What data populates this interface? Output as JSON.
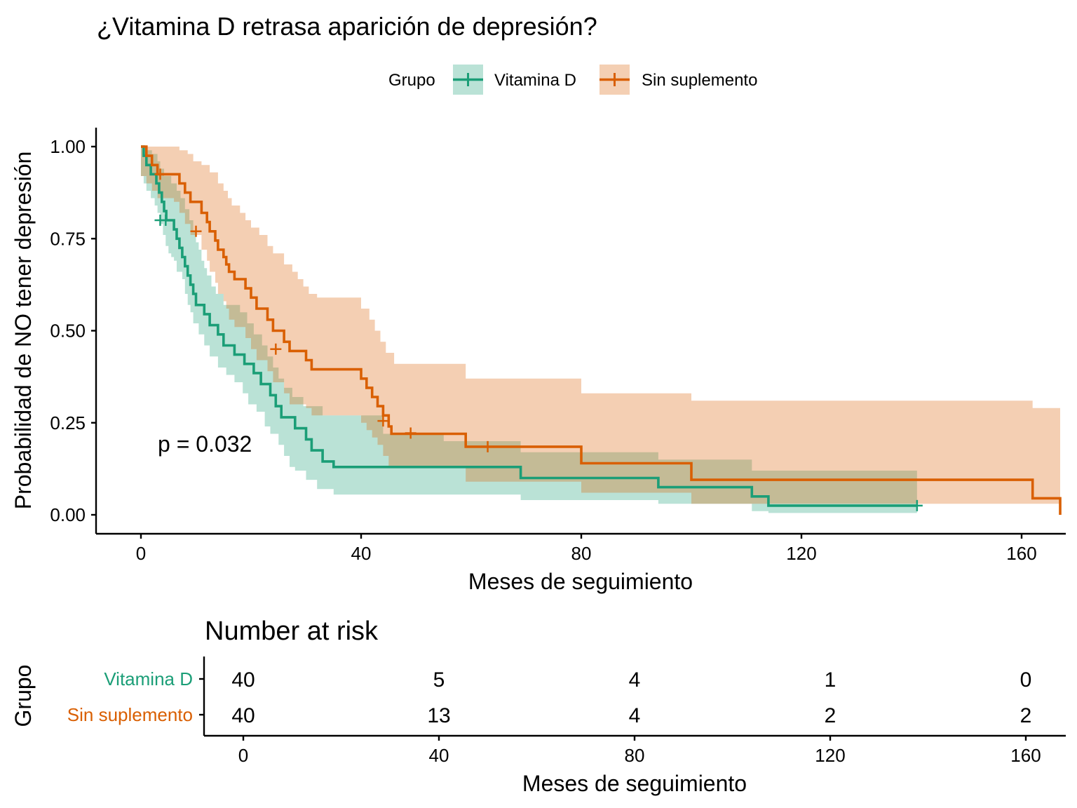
{
  "title": "¿Vitamina D retrasa aparición de depresión?",
  "legend": {
    "title": "Grupo",
    "items": [
      {
        "label": "Vitamina D",
        "color": "#1b9e77"
      },
      {
        "label": "Sin suplemento",
        "color": "#d95f02"
      }
    ]
  },
  "pvalue_text": "p = 0.032",
  "chart_data": [
    {
      "type": "line",
      "subtype": "kaplan-meier",
      "title": "¿Vitamina D retrasa aparición de depresión?",
      "xlabel": "Meses de seguimiento",
      "ylabel": "Probabilidad de NO tener depresión",
      "xlim": [
        -1,
        168
      ],
      "ylim": [
        0,
        1
      ],
      "xticks": [
        0,
        40,
        80,
        120,
        160
      ],
      "yticks": [
        0,
        0.25,
        0.5,
        0.75,
        1
      ],
      "ytick_labels": [
        "0.00",
        "0.25",
        "0.50",
        "0.75",
        "1.00"
      ],
      "grid": false,
      "legend_position": "top",
      "series": [
        {
          "name": "Vitamina D",
          "color": "#1b9e77",
          "steps": [
            [
              0,
              1.0
            ],
            [
              0.5,
              0.975
            ],
            [
              1,
              0.95
            ],
            [
              1.8,
              0.925
            ],
            [
              2.8,
              0.9
            ],
            [
              3.3,
              0.875
            ],
            [
              3.8,
              0.85
            ],
            [
              4.2,
              0.825
            ],
            [
              4.6,
              0.8
            ],
            [
              6,
              0.775
            ],
            [
              6.5,
              0.75
            ],
            [
              7,
              0.725
            ],
            [
              7.5,
              0.7
            ],
            [
              8,
              0.675
            ],
            [
              8.5,
              0.65
            ],
            [
              9,
              0.625
            ],
            [
              9.5,
              0.6
            ],
            [
              10,
              0.57
            ],
            [
              11.5,
              0.545
            ],
            [
              12.5,
              0.515
            ],
            [
              14,
              0.49
            ],
            [
              15,
              0.46
            ],
            [
              17,
              0.435
            ],
            [
              18.8,
              0.41
            ],
            [
              20.5,
              0.385
            ],
            [
              21.8,
              0.355
            ],
            [
              23.5,
              0.325
            ],
            [
              24.5,
              0.295
            ],
            [
              25.5,
              0.265
            ],
            [
              28,
              0.235
            ],
            [
              30,
              0.205
            ],
            [
              31,
              0.175
            ],
            [
              33,
              0.145
            ],
            [
              35,
              0.13
            ],
            [
              69,
              0.1
            ],
            [
              94,
              0.075
            ],
            [
              111,
              0.05
            ],
            [
              114,
              0.025
            ],
            [
              141,
              0.025
            ]
          ],
          "censor": [
            [
              3.5,
              0.8
            ],
            [
              4.5,
              0.8
            ],
            [
              141,
              0.025
            ]
          ],
          "ci_upper": [
            [
              0,
              1.0
            ],
            [
              0.8,
              1.0
            ],
            [
              1.2,
              0.99
            ],
            [
              2.0,
              0.98
            ],
            [
              3.0,
              0.96
            ],
            [
              3.5,
              0.94
            ],
            [
              4.2,
              0.92
            ],
            [
              5.5,
              0.9
            ],
            [
              6.5,
              0.88
            ],
            [
              7.2,
              0.86
            ],
            [
              8,
              0.83
            ],
            [
              8.8,
              0.8
            ],
            [
              9.5,
              0.77
            ],
            [
              10,
              0.74
            ],
            [
              10.5,
              0.72
            ],
            [
              11,
              0.69
            ],
            [
              11.5,
              0.67
            ],
            [
              12,
              0.65
            ],
            [
              12.8,
              0.62
            ],
            [
              13.6,
              0.6
            ],
            [
              15,
              0.57
            ],
            [
              18,
              0.55
            ],
            [
              19.3,
              0.52
            ],
            [
              20.5,
              0.49
            ],
            [
              22,
              0.46
            ],
            [
              23,
              0.43
            ],
            [
              24,
              0.4
            ],
            [
              25,
              0.37
            ],
            [
              26,
              0.345
            ],
            [
              27.5,
              0.32
            ],
            [
              29.5,
              0.295
            ],
            [
              33,
              0.27
            ],
            [
              44,
              0.22
            ],
            [
              55,
              0.2
            ],
            [
              69,
              0.17
            ],
            [
              94,
              0.15
            ],
            [
              98,
              0.15
            ],
            [
              111,
              0.12
            ],
            [
              114,
              0.12
            ],
            [
              141,
              0.12
            ]
          ],
          "ci_lower": [
            [
              0,
              0.92
            ],
            [
              0.5,
              0.9
            ],
            [
              1.0,
              0.88
            ],
            [
              1.8,
              0.86
            ],
            [
              2.5,
              0.84
            ],
            [
              3.0,
              0.82
            ],
            [
              3.5,
              0.79
            ],
            [
              4.0,
              0.76
            ],
            [
              4.5,
              0.73
            ],
            [
              5,
              0.71
            ],
            [
              5.5,
              0.7
            ],
            [
              6,
              0.69
            ],
            [
              6.5,
              0.66
            ],
            [
              7.5,
              0.64
            ],
            [
              8,
              0.6
            ],
            [
              8.5,
              0.57
            ],
            [
              9,
              0.55
            ],
            [
              9.5,
              0.52
            ],
            [
              10.5,
              0.49
            ],
            [
              11.5,
              0.46
            ],
            [
              12.5,
              0.43
            ],
            [
              14,
              0.4
            ],
            [
              15.5,
              0.38
            ],
            [
              17,
              0.36
            ],
            [
              18.5,
              0.33
            ],
            [
              19.5,
              0.3
            ],
            [
              21,
              0.28
            ],
            [
              22.5,
              0.24
            ],
            [
              23.5,
              0.22
            ],
            [
              25,
              0.19
            ],
            [
              26,
              0.16
            ],
            [
              27,
              0.13
            ],
            [
              28,
              0.12
            ],
            [
              30,
              0.095
            ],
            [
              32,
              0.07
            ],
            [
              35,
              0.055
            ],
            [
              69,
              0.04
            ],
            [
              94,
              0.03
            ],
            [
              111,
              0.01
            ],
            [
              114,
              0.005
            ],
            [
              141,
              0.005
            ]
          ]
        },
        {
          "name": "Sin suplemento",
          "color": "#d95f02",
          "steps": [
            [
              0,
              1.0
            ],
            [
              1,
              0.975
            ],
            [
              2,
              0.95
            ],
            [
              3,
              0.925
            ],
            [
              6,
              0.925
            ],
            [
              7,
              0.9
            ],
            [
              8,
              0.875
            ],
            [
              9,
              0.85
            ],
            [
              11,
              0.82
            ],
            [
              12,
              0.795
            ],
            [
              12.5,
              0.77
            ],
            [
              13.5,
              0.745
            ],
            [
              14,
              0.72
            ],
            [
              15,
              0.7
            ],
            [
              15.5,
              0.68
            ],
            [
              16,
              0.66
            ],
            [
              17,
              0.64
            ],
            [
              19,
              0.615
            ],
            [
              20,
              0.59
            ],
            [
              21,
              0.56
            ],
            [
              23,
              0.53
            ],
            [
              24,
              0.5
            ],
            [
              26,
              0.47
            ],
            [
              27,
              0.445
            ],
            [
              30,
              0.42
            ],
            [
              31,
              0.395
            ],
            [
              40,
              0.37
            ],
            [
              41,
              0.345
            ],
            [
              42,
              0.32
            ],
            [
              43,
              0.295
            ],
            [
              44,
              0.27
            ],
            [
              45,
              0.24
            ],
            [
              45.5,
              0.22
            ],
            [
              59,
              0.185
            ],
            [
              80,
              0.14
            ],
            [
              100,
              0.095
            ],
            [
              162,
              0.045
            ],
            [
              167,
              0.0
            ]
          ],
          "censor": [
            [
              3.5,
              0.925
            ],
            [
              10,
              0.77
            ],
            [
              24.5,
              0.45
            ],
            [
              44,
              0.255
            ],
            [
              49,
              0.222
            ],
            [
              63,
              0.185
            ]
          ],
          "ci_upper": [
            [
              0,
              1.0
            ],
            [
              6,
              1.0
            ],
            [
              7,
              0.99
            ],
            [
              8.5,
              0.98
            ],
            [
              9.5,
              0.96
            ],
            [
              11,
              0.95
            ],
            [
              12.5,
              0.93
            ],
            [
              14,
              0.9
            ],
            [
              15,
              0.88
            ],
            [
              15.8,
              0.86
            ],
            [
              16.5,
              0.84
            ],
            [
              18,
              0.82
            ],
            [
              19,
              0.8
            ],
            [
              20,
              0.78
            ],
            [
              21.5,
              0.76
            ],
            [
              23,
              0.73
            ],
            [
              24,
              0.71
            ],
            [
              26,
              0.68
            ],
            [
              27.5,
              0.66
            ],
            [
              28.5,
              0.64
            ],
            [
              29.5,
              0.62
            ],
            [
              30.5,
              0.6
            ],
            [
              32,
              0.59
            ],
            [
              39,
              0.59
            ],
            [
              40,
              0.56
            ],
            [
              41.5,
              0.53
            ],
            [
              42.5,
              0.5
            ],
            [
              43.5,
              0.47
            ],
            [
              44.5,
              0.44
            ],
            [
              46,
              0.41
            ],
            [
              59,
              0.37
            ],
            [
              80,
              0.33
            ],
            [
              100,
              0.31
            ],
            [
              162,
              0.29
            ],
            [
              167,
              0.29
            ]
          ],
          "ci_lower": [
            [
              0,
              0.92
            ],
            [
              1,
              0.9
            ],
            [
              2,
              0.88
            ],
            [
              3,
              0.86
            ],
            [
              6,
              0.85
            ],
            [
              7,
              0.82
            ],
            [
              8,
              0.79
            ],
            [
              9,
              0.76
            ],
            [
              11,
              0.72
            ],
            [
              12,
              0.69
            ],
            [
              12.5,
              0.66
            ],
            [
              13.5,
              0.63
            ],
            [
              14,
              0.6
            ],
            [
              15,
              0.58
            ],
            [
              15.5,
              0.56
            ],
            [
              16,
              0.53
            ],
            [
              17,
              0.51
            ],
            [
              19,
              0.48
            ],
            [
              20,
              0.45
            ],
            [
              21,
              0.42
            ],
            [
              23,
              0.39
            ],
            [
              24,
              0.36
            ],
            [
              26,
              0.33
            ],
            [
              27,
              0.3
            ],
            [
              30,
              0.29
            ],
            [
              31,
              0.27
            ],
            [
              40,
              0.25
            ],
            [
              41,
              0.23
            ],
            [
              42,
              0.21
            ],
            [
              43,
              0.19
            ],
            [
              44,
              0.16
            ],
            [
              45,
              0.13
            ],
            [
              59,
              0.09
            ],
            [
              80,
              0.06
            ],
            [
              100,
              0.03
            ],
            [
              162,
              0.03
            ],
            [
              167,
              0.03
            ]
          ]
        }
      ]
    },
    {
      "type": "table",
      "title": "Number at risk",
      "xlabel": "Meses de seguimiento",
      "ylabel": "Grupo",
      "xlim": [
        -1,
        168
      ],
      "xticks": [
        0,
        40,
        80,
        120,
        160
      ],
      "columns": [
        0,
        40,
        80,
        120,
        160
      ],
      "rows": [
        {
          "name": "Vitamina D",
          "color": "#1b9e77",
          "values": [
            40,
            5,
            4,
            1,
            0
          ]
        },
        {
          "name": "Sin suplemento",
          "color": "#d95f02",
          "values": [
            40,
            13,
            4,
            2,
            2
          ]
        }
      ]
    }
  ]
}
